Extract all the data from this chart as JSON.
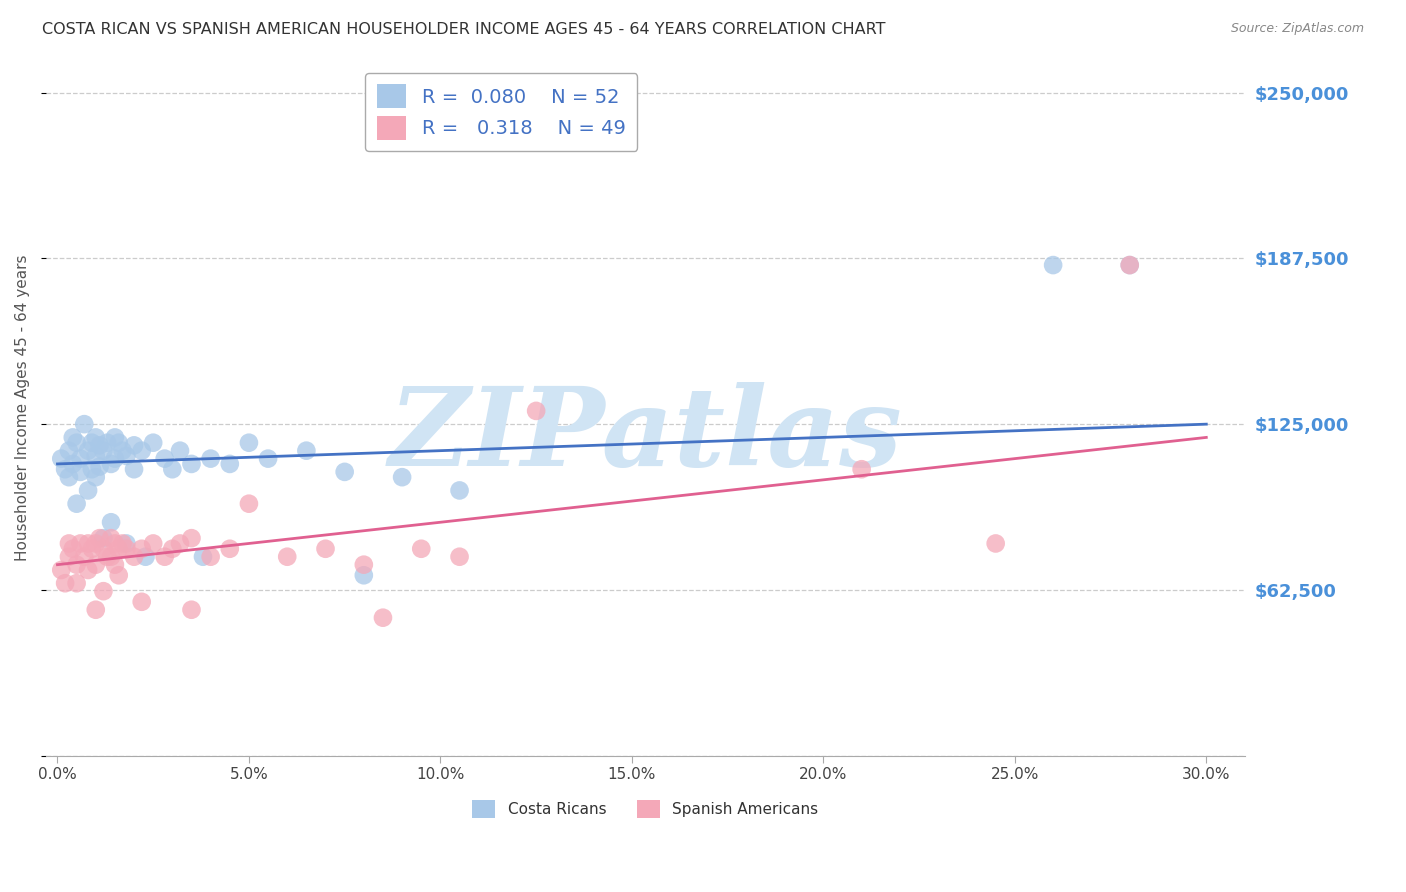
{
  "title": "COSTA RICAN VS SPANISH AMERICAN HOUSEHOLDER INCOME AGES 45 - 64 YEARS CORRELATION CHART",
  "source": "Source: ZipAtlas.com",
  "ylabel": "Householder Income Ages 45 - 64 years",
  "xlabel_ticks": [
    "0.0%",
    "5.0%",
    "10.0%",
    "15.0%",
    "20.0%",
    "25.0%",
    "30.0%"
  ],
  "xlabel_vals": [
    0.0,
    5.0,
    10.0,
    15.0,
    20.0,
    25.0,
    30.0
  ],
  "xlim": [
    -0.3,
    31.0
  ],
  "ylim": [
    0,
    262500
  ],
  "yticks": [
    0,
    62500,
    125000,
    187500,
    250000
  ],
  "ytick_labels": [
    "",
    "$62,500",
    "$125,000",
    "$187,500",
    "$250,000"
  ],
  "R_blue": 0.08,
  "N_blue": 52,
  "R_pink": 0.318,
  "N_pink": 49,
  "legend_label_blue": "Costa Ricans",
  "legend_label_pink": "Spanish Americans",
  "blue_color": "#a8c8e8",
  "pink_color": "#f4a8b8",
  "blue_line_color": "#4472c4",
  "pink_line_color": "#e06090",
  "title_color": "#333333",
  "axis_label_color": "#555555",
  "ytick_color": "#4a90d9",
  "grid_color": "#cccccc",
  "watermark_color": "#d0e4f4",
  "blue_x": [
    0.1,
    0.2,
    0.3,
    0.3,
    0.4,
    0.4,
    0.5,
    0.5,
    0.6,
    0.6,
    0.7,
    0.8,
    0.8,
    0.9,
    0.9,
    1.0,
    1.0,
    1.0,
    1.1,
    1.1,
    1.2,
    1.3,
    1.4,
    1.5,
    1.5,
    1.6,
    1.7,
    1.8,
    2.0,
    2.0,
    2.2,
    2.5,
    2.8,
    3.0,
    3.2,
    3.5,
    4.0,
    4.5,
    5.0,
    5.5,
    6.5,
    7.5,
    9.0,
    10.5,
    1.2,
    1.4,
    1.8,
    2.3,
    3.8,
    8.0,
    26.0,
    28.0
  ],
  "blue_y": [
    112000,
    108000,
    115000,
    105000,
    120000,
    110000,
    118000,
    95000,
    112000,
    107000,
    125000,
    115000,
    100000,
    118000,
    108000,
    120000,
    113000,
    105000,
    117000,
    109000,
    115000,
    118000,
    110000,
    120000,
    112000,
    118000,
    115000,
    113000,
    117000,
    108000,
    115000,
    118000,
    112000,
    108000,
    115000,
    110000,
    112000,
    110000,
    118000,
    112000,
    115000,
    107000,
    105000,
    100000,
    82000,
    88000,
    80000,
    75000,
    75000,
    68000,
    185000,
    185000
  ],
  "pink_x": [
    0.1,
    0.2,
    0.3,
    0.3,
    0.4,
    0.5,
    0.5,
    0.6,
    0.7,
    0.8,
    0.8,
    0.9,
    1.0,
    1.0,
    1.1,
    1.2,
    1.3,
    1.4,
    1.4,
    1.5,
    1.5,
    1.6,
    1.7,
    1.8,
    2.0,
    2.2,
    2.5,
    2.8,
    3.0,
    3.2,
    3.5,
    4.0,
    4.5,
    5.0,
    6.0,
    7.0,
    8.0,
    9.5,
    10.5,
    12.5,
    1.0,
    1.2,
    1.6,
    2.2,
    3.5,
    8.5,
    21.0,
    24.5,
    28.0
  ],
  "pink_y": [
    70000,
    65000,
    80000,
    75000,
    78000,
    72000,
    65000,
    80000,
    75000,
    80000,
    70000,
    78000,
    80000,
    72000,
    82000,
    78000,
    75000,
    82000,
    75000,
    80000,
    72000,
    78000,
    80000,
    78000,
    75000,
    78000,
    80000,
    75000,
    78000,
    80000,
    82000,
    75000,
    78000,
    95000,
    75000,
    78000,
    72000,
    78000,
    75000,
    130000,
    55000,
    62000,
    68000,
    58000,
    55000,
    52000,
    108000,
    80000,
    185000
  ]
}
